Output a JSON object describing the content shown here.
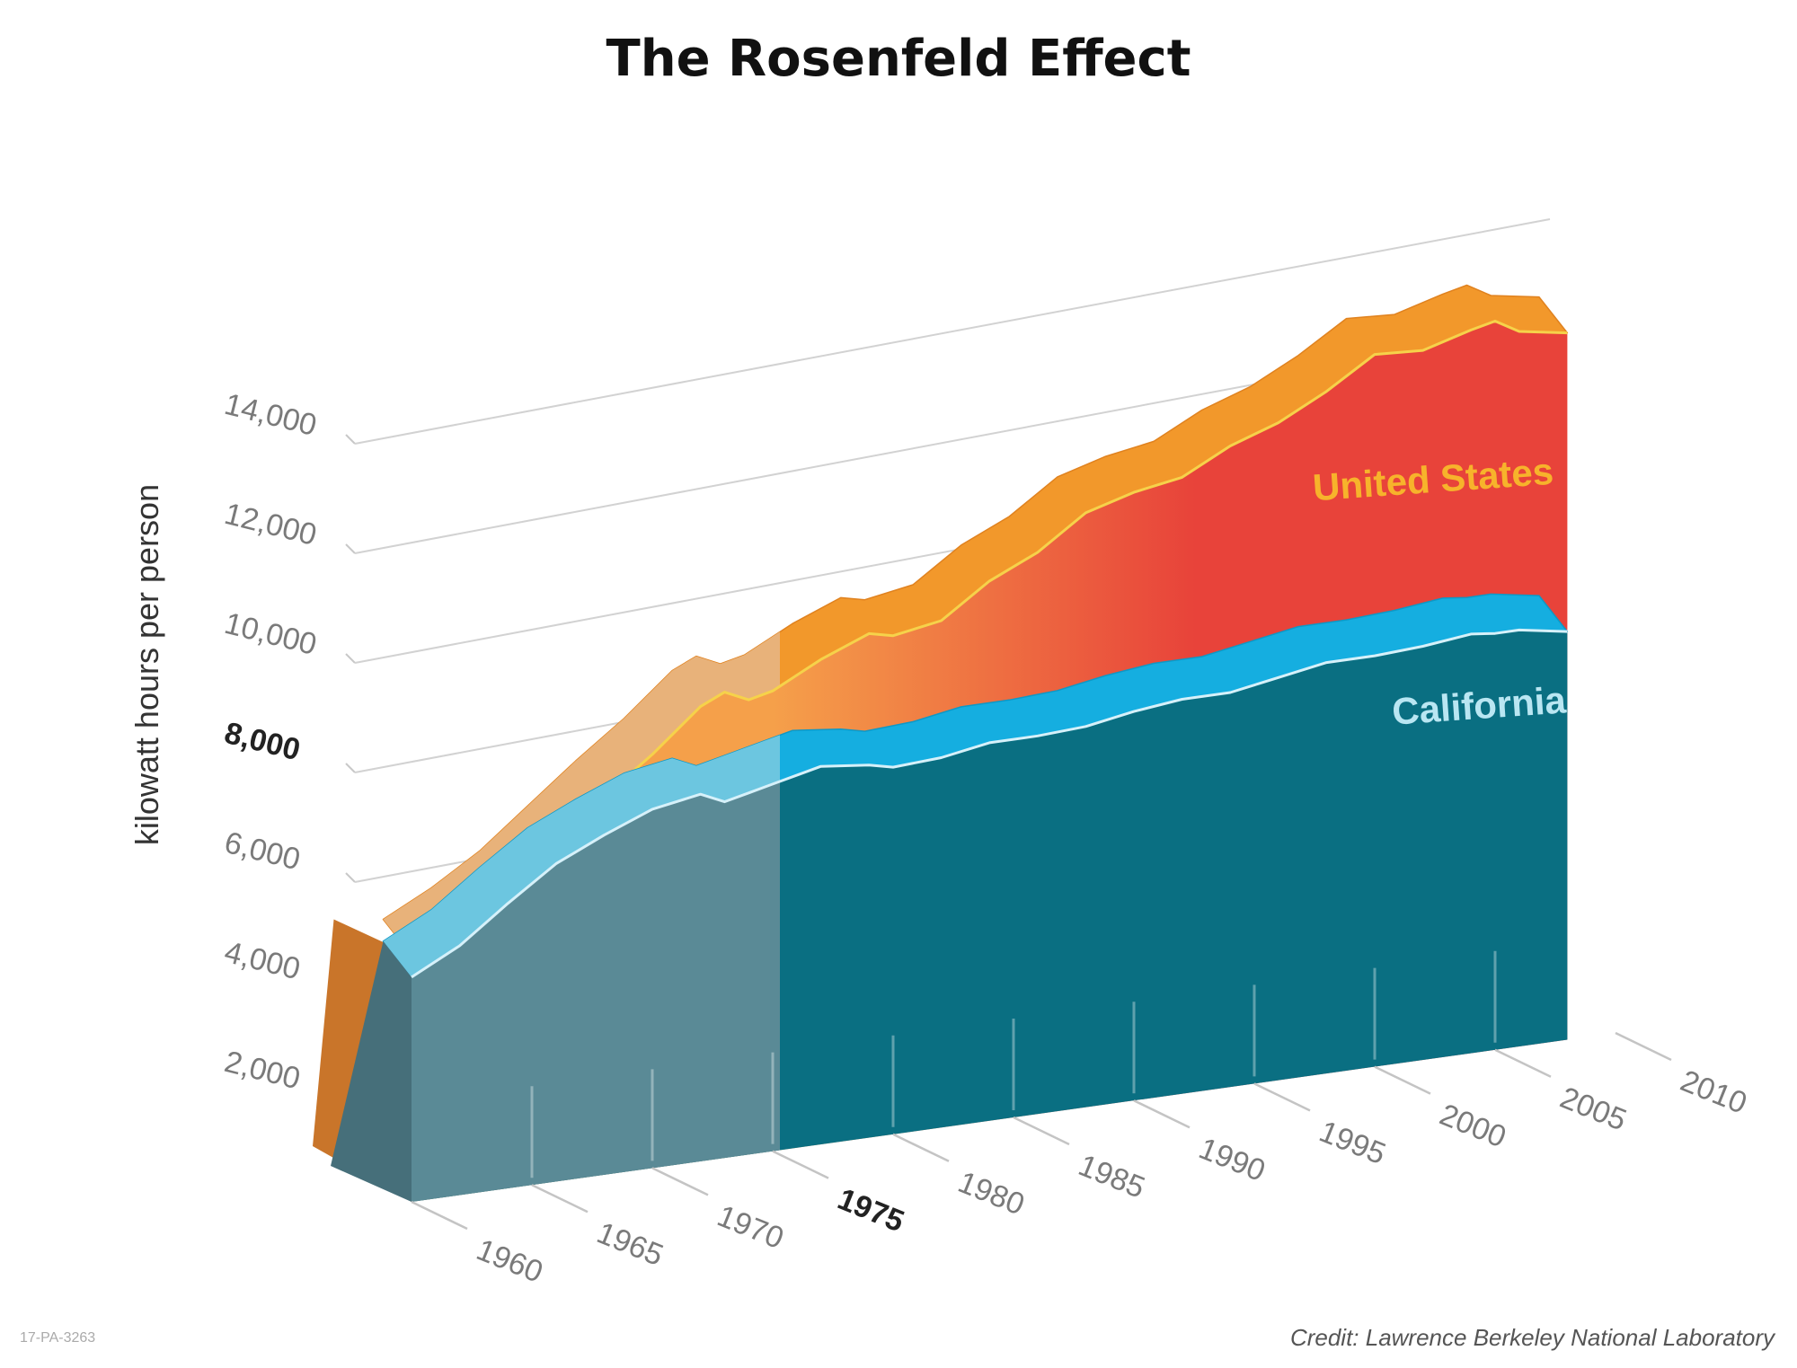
{
  "chart_data": {
    "type": "area",
    "title": "The Rosenfeld Effect",
    "ylabel": "kilowatt hours per person",
    "xlabel": "",
    "ylim": [
      0,
      14000
    ],
    "y_ticks": [
      "2,000",
      "4,000",
      "6,000",
      "8,000",
      "10,000",
      "12,000",
      "14,000"
    ],
    "x_ticks": [
      "1960",
      "1965",
      "1970",
      "1975",
      "1980",
      "1985",
      "1990",
      "1995",
      "2000",
      "2005",
      "2010"
    ],
    "highlight_x_tick": "1975",
    "highlight_y_tick": "8,000",
    "x": [
      1960,
      1962,
      1964,
      1966,
      1968,
      1970,
      1972,
      1973,
      1974,
      1975,
      1977,
      1979,
      1980,
      1982,
      1984,
      1986,
      1988,
      1990,
      1992,
      1994,
      1996,
      1998,
      2000,
      2002,
      2004,
      2005,
      2006,
      2008
    ],
    "series": [
      {
        "name": "United States",
        "color": "#e8433a",
        "values": [
          4500,
          4950,
          5500,
          6200,
          6900,
          7550,
          8300,
          8500,
          8300,
          8400,
          8850,
          9200,
          9100,
          9250,
          9850,
          10250,
          10850,
          11100,
          11250,
          11700,
          12000,
          12450,
          13000,
          12950,
          13200,
          13300,
          13050,
          12900
        ]
      },
      {
        "name": "California",
        "color": "#0a6f82",
        "values": [
          4100,
          4550,
          5200,
          5800,
          6200,
          6550,
          6700,
          6500,
          6600,
          6700,
          6900,
          6800,
          6700,
          6750,
          6900,
          6900,
          6950,
          7100,
          7200,
          7200,
          7350,
          7500,
          7500,
          7550,
          7650,
          7600,
          7600,
          7450
        ]
      }
    ]
  },
  "credit": "Credit: Lawrence Berkeley National Laboratory",
  "code": "17-PA-3263"
}
